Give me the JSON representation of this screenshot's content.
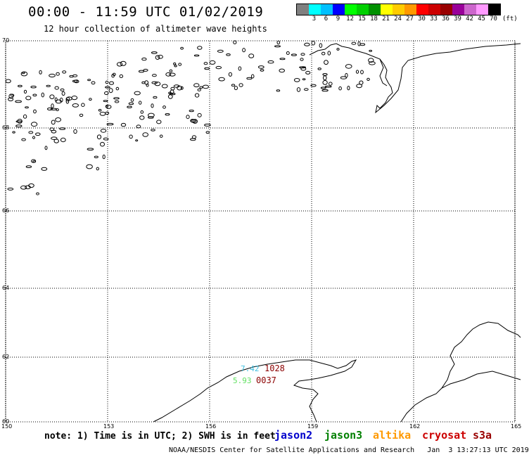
{
  "header": {
    "title": "00:00 - 11:59 UTC 01/02/2019",
    "subtitle": "12 hour collection of altimeter wave heights"
  },
  "legend": {
    "swatches": [
      {
        "label": "",
        "color": "#808080"
      },
      {
        "label": "3",
        "color": "#00ffff"
      },
      {
        "label": "6",
        "color": "#00c0ff"
      },
      {
        "label": "9",
        "color": "#0000ff"
      },
      {
        "label": "12",
        "color": "#00ff00"
      },
      {
        "label": "15",
        "color": "#00d000"
      },
      {
        "label": "18",
        "color": "#009000"
      },
      {
        "label": "21",
        "color": "#ffff00"
      },
      {
        "label": "24",
        "color": "#ffcc00"
      },
      {
        "label": "27",
        "color": "#ff9900"
      },
      {
        "label": "30",
        "color": "#ff0000"
      },
      {
        "label": "33",
        "color": "#cc0000"
      },
      {
        "label": "36",
        "color": "#990000"
      },
      {
        "label": "39",
        "color": "#990099"
      },
      {
        "label": "42",
        "color": "#cc66cc"
      },
      {
        "label": "45",
        "color": "#ff99ff"
      },
      {
        "label": "70",
        "color": "#000000"
      }
    ],
    "units": "(ft)"
  },
  "map": {
    "lon_ticks": [
      "150",
      "153",
      "156",
      "159",
      "162",
      "165"
    ],
    "lat_ticks": [
      "60",
      "62",
      "64",
      "66",
      "68",
      "70"
    ],
    "annotations": {
      "swh_a": "7.42",
      "swh_b": "5.93",
      "time_a": "1028",
      "time_b": "0037"
    },
    "annotation_colors": {
      "swh_a": "#40c0e0",
      "swh_b": "#60e060",
      "time": "#8b0000"
    }
  },
  "footer": {
    "note": "note: 1) Time is in UTC; 2) SWH is in feet",
    "satellites": [
      {
        "name": "jason2",
        "color": "#0000cc"
      },
      {
        "name": "jason3",
        "color": "#008000"
      },
      {
        "name": "altika",
        "color": "#ff9900"
      },
      {
        "name": "cryosat",
        "color": "#cc0000"
      },
      {
        "name": "s3a",
        "color": "#990000"
      }
    ],
    "credit": "NOAA/NESDIS Center for Satellite Applications and Research   Jan  3 13:27:13 UTC 2019"
  }
}
